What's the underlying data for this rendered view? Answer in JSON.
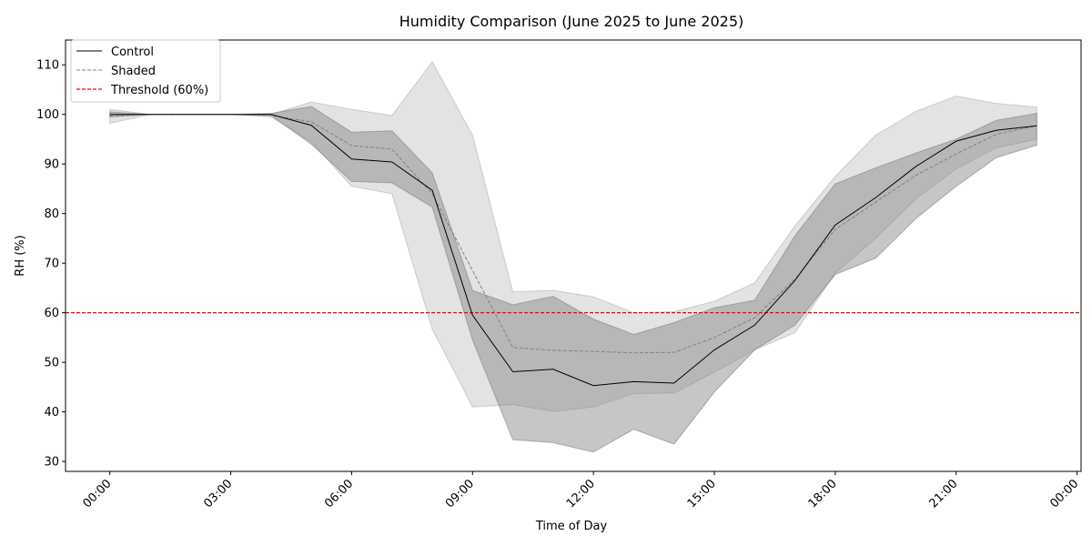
{
  "chart_data": {
    "type": "line",
    "title": "Humidity Comparison (June 2025 to June 2025)",
    "xlabel": "Time of Day",
    "ylabel": "RH (%)",
    "x_hours": [
      0,
      1,
      2,
      3,
      4,
      5,
      6,
      7,
      8,
      9,
      10,
      11,
      12,
      13,
      14,
      15,
      16,
      17,
      18,
      19,
      20,
      21,
      22,
      23
    ],
    "xlim_hours": [
      -1.1,
      24.1
    ],
    "ylim": [
      28,
      115
    ],
    "x_ticks": [
      {
        "hour": 0,
        "label": "00:00"
      },
      {
        "hour": 3,
        "label": "03:00"
      },
      {
        "hour": 6,
        "label": "06:00"
      },
      {
        "hour": 9,
        "label": "09:00"
      },
      {
        "hour": 12,
        "label": "12:00"
      },
      {
        "hour": 15,
        "label": "15:00"
      },
      {
        "hour": 18,
        "label": "18:00"
      },
      {
        "hour": 21,
        "label": "21:00"
      },
      {
        "hour": 24,
        "label": "00:00"
      }
    ],
    "y_ticks": [
      30,
      40,
      50,
      60,
      70,
      80,
      90,
      100,
      110
    ],
    "series": [
      {
        "name": "Control",
        "color": "#000000",
        "style": "solid",
        "values": [
          100.0,
          100.0,
          100.0,
          100.0,
          100.0,
          97.8,
          91.0,
          90.4,
          84.7,
          59.5,
          48.1,
          48.6,
          45.3,
          46.1,
          45.8,
          52.5,
          57.5,
          66.5,
          77.7,
          83.2,
          89.5,
          94.6,
          96.8,
          97.7
        ],
        "band_low": [
          99.5,
          100.0,
          100.0,
          100.0,
          99.8,
          94.0,
          86.5,
          86.2,
          81.3,
          54.5,
          34.4,
          33.8,
          31.9,
          36.5,
          33.5,
          44.0,
          52.5,
          57.5,
          67.7,
          71.0,
          79.0,
          85.5,
          91.3,
          93.8
        ],
        "band_high": [
          100.5,
          100.0,
          100.0,
          100.0,
          100.2,
          101.6,
          96.4,
          96.7,
          88.2,
          64.5,
          61.6,
          63.3,
          58.7,
          55.6,
          58.0,
          61.0,
          62.5,
          75.5,
          86.0,
          89.2,
          92.2,
          95.0,
          98.8,
          100.2
        ]
      },
      {
        "name": "Shaded",
        "color": "#808080",
        "style": "dashed",
        "values": [
          99.7,
          100.0,
          100.0,
          100.0,
          99.8,
          98.5,
          93.7,
          93.0,
          84.0,
          68.5,
          53.0,
          52.4,
          52.2,
          51.9,
          52.0,
          55.0,
          59.0,
          66.8,
          76.8,
          82.3,
          87.7,
          92.0,
          96.0,
          97.7
        ],
        "band_low": [
          98.2,
          100.0,
          100.0,
          100.0,
          99.5,
          94.5,
          85.5,
          84.0,
          56.7,
          41.0,
          41.5,
          40.1,
          41.0,
          43.7,
          43.8,
          48.0,
          52.5,
          56.0,
          68.0,
          75.0,
          83.0,
          89.0,
          93.3,
          95.0
        ],
        "band_high": [
          101.0,
          100.0,
          100.0,
          100.0,
          100.0,
          102.5,
          101.0,
          99.8,
          110.6,
          95.8,
          64.2,
          64.5,
          63.2,
          60.0,
          60.2,
          62.3,
          66.0,
          77.5,
          87.5,
          95.8,
          100.6,
          103.7,
          102.2,
          101.5
        ]
      }
    ],
    "threshold": {
      "name": "Threshold (60%)",
      "value": 60,
      "color": "#ff0000",
      "style": "dashed"
    },
    "band_colors": {
      "Control": "#808080",
      "Shaded": "#b0b0b0"
    },
    "legend_position": "upper-left",
    "grid": false
  }
}
